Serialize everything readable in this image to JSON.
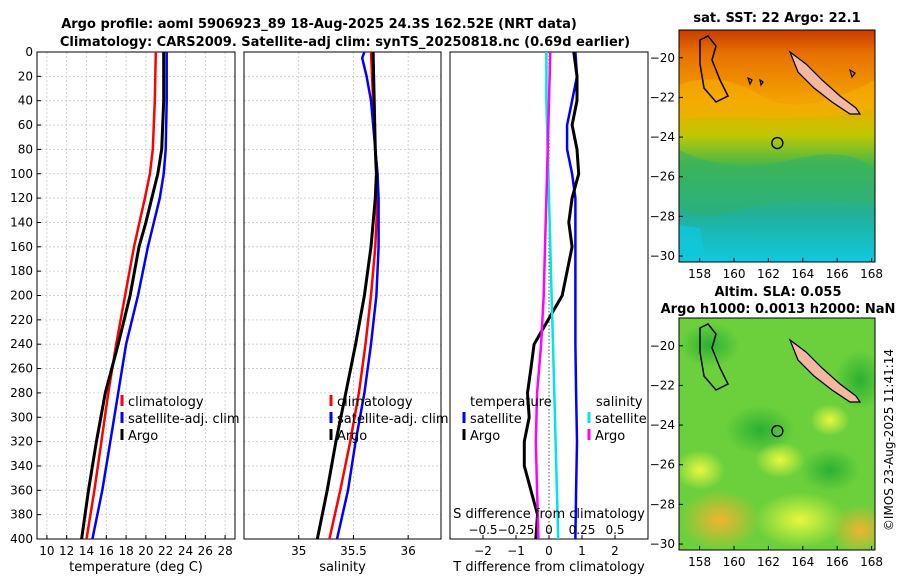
{
  "titles": {
    "line1": "Argo profile: aoml 5906923_89 18-Aug-2025 24.3S 162.52E (NRT data)",
    "line2": "Climatology: CARS2009. Satellite-adj clim: synTS_20250818.nc (0.69d earlier)",
    "sst": "sat. SST: 22 Argo: 22.1",
    "sla1": "Altim. SLA: 0.055",
    "sla2": "Argo h1000: 0.0013 h2000: NaN",
    "stamp": "©IMOS 23-Aug-2025 11:41:14"
  },
  "colors": {
    "climatology": "#ff0000",
    "satellite": "#0000ff",
    "argo": "#000000",
    "cyan": "#00e5e5",
    "magenta": "#ff00ff"
  },
  "chart_data": [
    {
      "type": "line",
      "id": "temperature",
      "xlabel": "temperature (deg C)",
      "xlim": [
        9,
        29
      ],
      "ylim": [
        400,
        0
      ],
      "xticks": [
        "10",
        "12",
        "14",
        "16",
        "18",
        "20",
        "22",
        "24",
        "26",
        "28"
      ],
      "yticks": [
        "0",
        "20",
        "40",
        "60",
        "80",
        "100",
        "120",
        "140",
        "160",
        "180",
        "200",
        "220",
        "240",
        "260",
        "280",
        "300",
        "320",
        "340",
        "360",
        "380",
        "400"
      ],
      "grid": true,
      "legend": [
        "climatology",
        "satellite-adj. clim",
        "Argo"
      ],
      "series": [
        {
          "name": "climatology",
          "color": "red",
          "depth": [
            0,
            40,
            80,
            100,
            120,
            160,
            200,
            240,
            280,
            320,
            360,
            400
          ],
          "values": [
            21.0,
            20.9,
            20.7,
            20.4,
            19.9,
            18.8,
            17.9,
            17.0,
            16.2,
            15.5,
            14.8,
            14.0
          ]
        },
        {
          "name": "satellite-adj. clim",
          "color": "blue",
          "depth": [
            0,
            40,
            80,
            100,
            120,
            160,
            200,
            240,
            280,
            320,
            360,
            400
          ],
          "values": [
            22.1,
            22.1,
            22.0,
            21.8,
            21.4,
            20.2,
            19.2,
            18.0,
            17.2,
            16.4,
            15.6,
            14.6
          ]
        },
        {
          "name": "Argo",
          "color": "black",
          "depth": [
            0,
            40,
            80,
            100,
            120,
            140,
            160,
            200,
            240,
            280,
            320,
            360,
            400
          ],
          "values": [
            21.8,
            21.8,
            21.6,
            21.2,
            20.6,
            20.0,
            19.3,
            18.4,
            17.2,
            15.9,
            15.0,
            14.2,
            13.5
          ]
        }
      ]
    },
    {
      "type": "line",
      "id": "salinity",
      "xlabel": "salinity",
      "xlim": [
        34.5,
        36.3
      ],
      "ylim": [
        400,
        0
      ],
      "xticks": [
        "35",
        "35.5",
        "36"
      ],
      "grid": true,
      "legend": [
        "climatology",
        "satellite-adj. clim",
        "Argo"
      ],
      "series": [
        {
          "name": "climatology",
          "color": "red",
          "depth": [
            0,
            40,
            80,
            100,
            120,
            160,
            200,
            240,
            280,
            320,
            360,
            400
          ],
          "values": [
            35.66,
            35.68,
            35.7,
            35.72,
            35.72,
            35.7,
            35.66,
            35.61,
            35.55,
            35.47,
            35.38,
            35.28
          ]
        },
        {
          "name": "satellite-adj. clim",
          "color": "blue",
          "depth": [
            0,
            5,
            20,
            40,
            80,
            100,
            120,
            160,
            200,
            240,
            280,
            320,
            360,
            400
          ],
          "values": [
            35.6,
            35.58,
            35.62,
            35.66,
            35.7,
            35.72,
            35.73,
            35.73,
            35.71,
            35.66,
            35.6,
            35.52,
            35.45,
            35.35
          ]
        },
        {
          "name": "Argo",
          "color": "black",
          "depth": [
            0,
            40,
            80,
            100,
            120,
            160,
            200,
            240,
            280,
            320,
            360,
            400
          ],
          "values": [
            35.68,
            35.69,
            35.7,
            35.71,
            35.7,
            35.66,
            35.6,
            35.52,
            35.43,
            35.34,
            35.26,
            35.17
          ]
        }
      ]
    },
    {
      "type": "line",
      "id": "difference",
      "xlabel": "T difference from climatology",
      "top_label": "S difference from climatology",
      "xlim": [
        -3,
        3
      ],
      "ylim": [
        400,
        0
      ],
      "xticks": [
        "-2",
        "-1",
        "0",
        "1",
        "2"
      ],
      "top_ticks": [
        "-0.5",
        "-0.25",
        "0",
        "0.25",
        "0.5"
      ],
      "legend_temperature": [
        "temperature",
        "satellite",
        "Argo"
      ],
      "legend_salinity": [
        "salinity",
        "satellite",
        "Argo"
      ],
      "series": [
        {
          "name": "T satellite",
          "color": "blue",
          "depth": [
            0,
            20,
            40,
            60,
            80,
            100,
            120,
            160,
            200,
            240,
            280,
            320,
            360,
            400
          ],
          "values": [
            0.8,
            0.85,
            0.7,
            0.55,
            0.55,
            0.7,
            0.8,
            0.8,
            0.8,
            0.8,
            0.82,
            0.85,
            0.82,
            0.8
          ]
        },
        {
          "name": "T Argo",
          "color": "black",
          "depth": [
            0,
            20,
            40,
            60,
            80,
            100,
            120,
            140,
            160,
            200,
            240,
            260,
            280,
            300,
            320,
            340,
            360,
            380,
            400
          ],
          "values": [
            0.75,
            0.85,
            0.85,
            0.7,
            0.85,
            0.9,
            0.7,
            0.6,
            0.7,
            0.4,
            -0.45,
            -0.55,
            -0.65,
            -0.6,
            -0.75,
            -0.75,
            -0.55,
            -0.35,
            -0.4
          ]
        },
        {
          "name": "S satellite",
          "color": "cyan",
          "depth": [
            0,
            40,
            80,
            120,
            160,
            200,
            240,
            280,
            320,
            360,
            400
          ],
          "values": [
            -0.02,
            -0.02,
            -0.01,
            0.0,
            0.01,
            0.02,
            0.03,
            0.04,
            0.05,
            0.06,
            0.07
          ]
        },
        {
          "name": "S Argo",
          "color": "magenta",
          "depth": [
            0,
            40,
            80,
            120,
            160,
            200,
            240,
            280,
            320,
            360,
            400
          ],
          "values": [
            0.01,
            0.0,
            -0.01,
            -0.02,
            -0.03,
            -0.04,
            -0.06,
            -0.09,
            -0.1,
            -0.09,
            -0.08
          ]
        }
      ]
    },
    {
      "type": "heatmap",
      "id": "sst-map",
      "title": "sat. SST: 22 Argo: 22.1",
      "xticks": [
        "158",
        "160",
        "162",
        "164",
        "166",
        "168"
      ],
      "yticks": [
        "-20",
        "-22",
        "-24",
        "-26",
        "-28",
        "-30"
      ],
      "xlim": [
        156.8,
        168.2
      ],
      "ylim": [
        -30.3,
        -18.6
      ],
      "marker": {
        "lon": 162.52,
        "lat": -24.3
      }
    },
    {
      "type": "heatmap",
      "id": "sla-map",
      "title": "Altim. SLA: 0.055",
      "subtitle": "Argo h1000: 0.0013 h2000: NaN",
      "xticks": [
        "158",
        "160",
        "162",
        "164",
        "166",
        "168"
      ],
      "yticks": [
        "-20",
        "-22",
        "-24",
        "-26",
        "-28",
        "-30"
      ],
      "xlim": [
        156.8,
        168.2
      ],
      "ylim": [
        -30.3,
        -18.6
      ],
      "marker": {
        "lon": 162.52,
        "lat": -24.3
      }
    }
  ]
}
